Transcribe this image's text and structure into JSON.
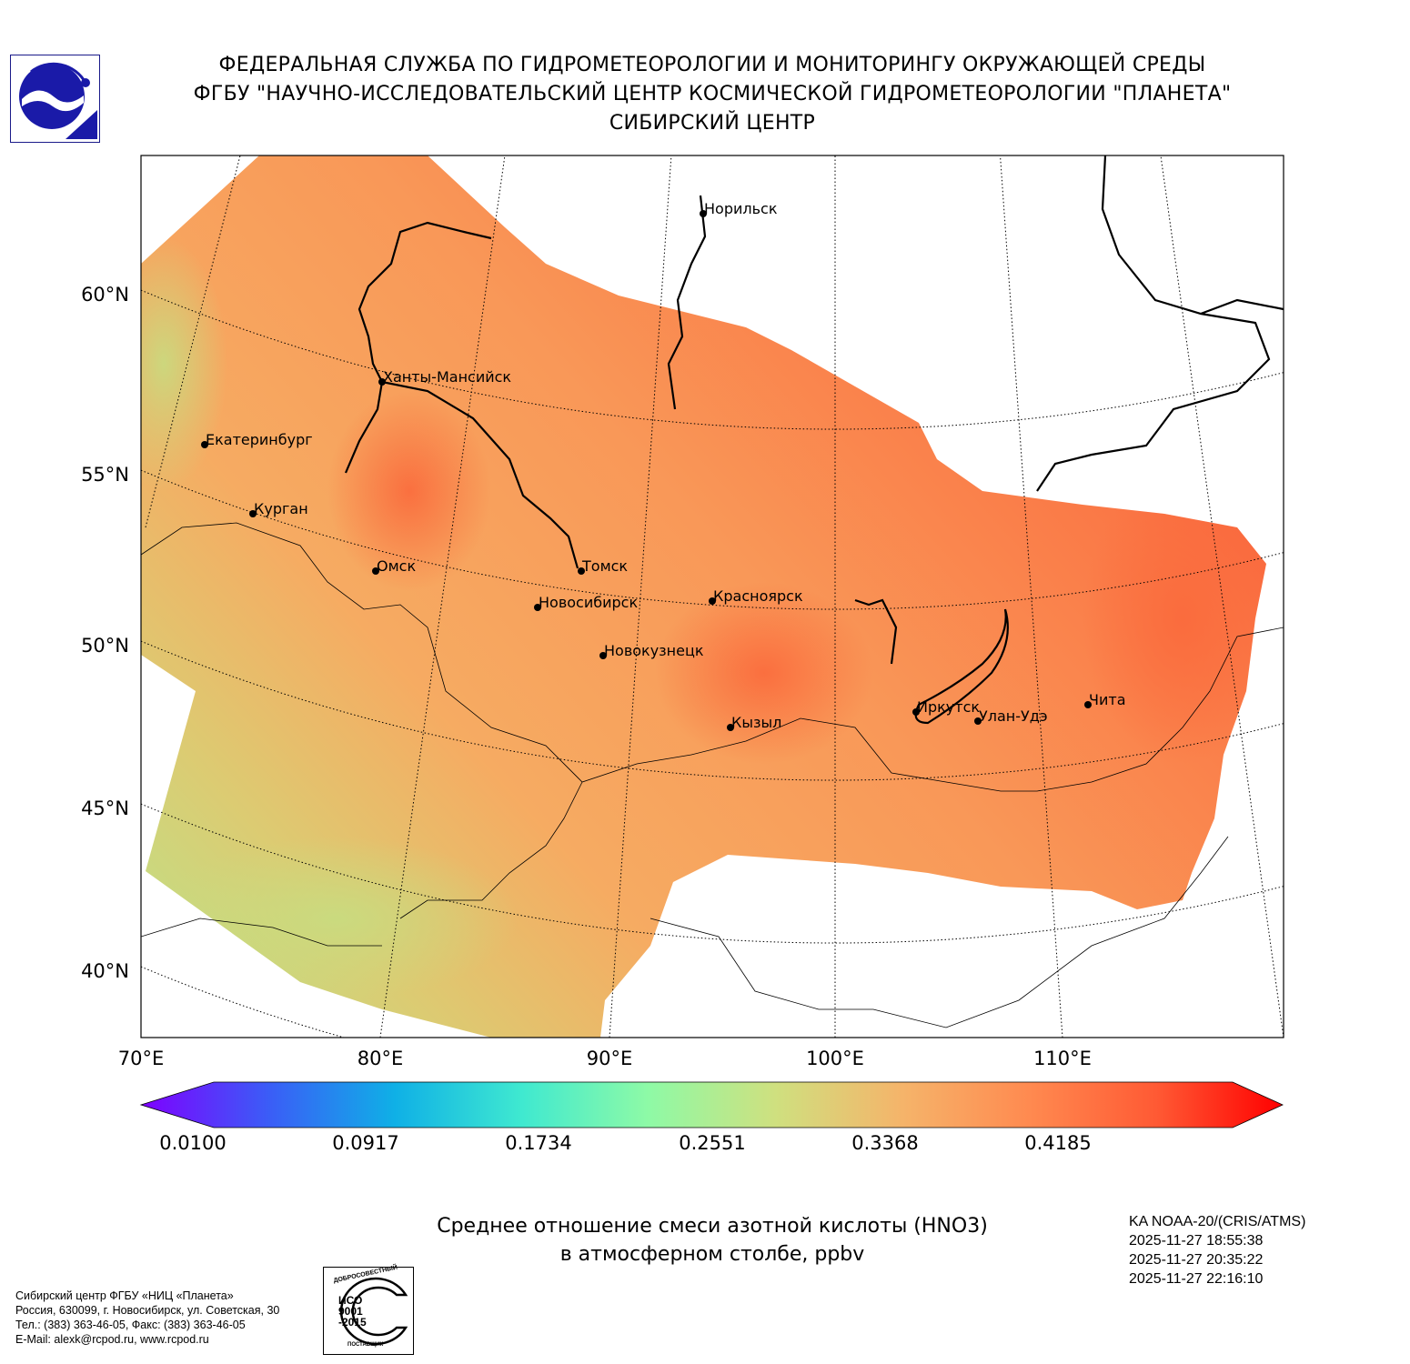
{
  "header": {
    "line1": "ФЕДЕРАЛЬНАЯ СЛУЖБА ПО ГИДРОМЕТЕОРОЛОГИИ И МОНИТОРИНГУ ОКРУЖАЮЩЕЙ СРЕДЫ",
    "line2": "ФГБУ \"НАУЧНО-ИССЛЕДОВАТЕЛЬСКИЙ ЦЕНТР КОСМИЧЕСКОЙ ГИДРОМЕТЕОРОЛОГИИ \"ПЛАНЕТА\"",
    "line3": "СИБИРСКИЙ ЦЕНТР"
  },
  "map": {
    "lat_labels": [
      "60°N",
      "55°N",
      "50°N",
      "45°N",
      "40°N"
    ],
    "lon_labels": [
      "70°E",
      "80°E",
      "90°E",
      "100°E",
      "110°E"
    ],
    "cities": [
      "Норильск",
      "Ханты-Мансийск",
      "Екатеринбург",
      "Курган",
      "Омск",
      "Томск",
      "Новосибирск",
      "Красноярск",
      "Новокузнецк",
      "Кызыл",
      "Иркутск",
      "Улан-Удэ",
      "Чита"
    ]
  },
  "colorbar": {
    "ticks": [
      "0.0100",
      "0.0917",
      "0.1734",
      "0.2551",
      "0.3368",
      "0.4185"
    ],
    "colors": [
      "#7f00ff",
      "#3b5cf7",
      "#0fb0e6",
      "#3fe9d0",
      "#8efaa6",
      "#cfe07f",
      "#f5b46a",
      "#ff8a50",
      "#ff5a34",
      "#ff0000"
    ]
  },
  "caption": {
    "line1": "Среднее отношение смеси азотной кислоты (HNO3)",
    "line2": "в атмосферном столбе, ppbv"
  },
  "satellite": {
    "name": "KA NOAA-20/(CRIS/ATMS)",
    "times": [
      "2025-11-27 18:55:38",
      "2025-11-27 20:35:22",
      "2025-11-27 22:16:10"
    ]
  },
  "footer": {
    "lines": [
      "Сибирский центр ФГБУ «НИЦ «Планета»",
      "Россия, 630099, г. Новосибирск, ул. Советская, 30",
      "Тел.: (383) 363-46-05, Факс: (383) 363-46-05",
      "E-Mail: alexk@rcpod.ru, www.rcpod.ru"
    ],
    "iso_badge": {
      "top": "ДОБРОСОВЕСТНЫЙ",
      "center": "ИСО 9001 -2015",
      "bottom": "ПОСТАВЩИК"
    }
  }
}
